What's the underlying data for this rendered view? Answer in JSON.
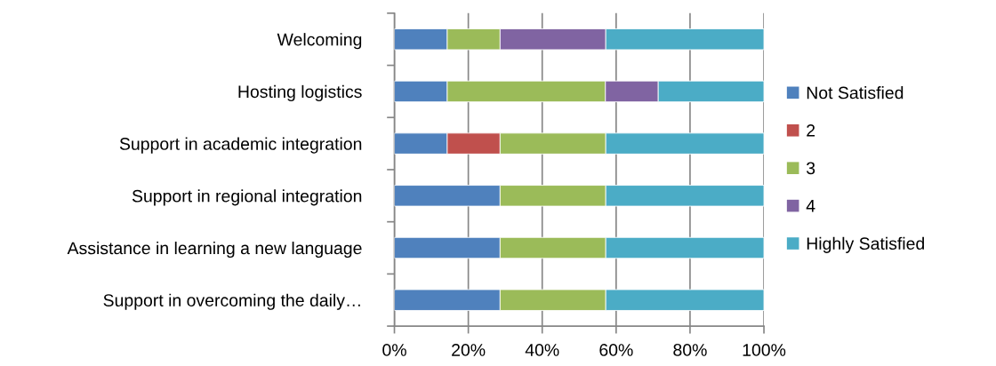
{
  "chart_data": {
    "type": "bar",
    "orientation": "horizontal",
    "stacked": true,
    "categories": [
      "Welcoming",
      "Hosting logistics",
      "Support in academic integration",
      "Support in regional integration",
      "Assistance in learning a new language",
      "Support in overcoming the daily…"
    ],
    "series": [
      {
        "name": "Not Satisfied",
        "color": "#4f81bd",
        "values": [
          14.3,
          14.3,
          14.3,
          28.6,
          28.6,
          28.6
        ]
      },
      {
        "name": "2",
        "color": "#c0504d",
        "values": [
          null,
          null,
          14.3,
          null,
          null,
          null
        ]
      },
      {
        "name": "3",
        "color": "#9bbb59",
        "values": [
          14.3,
          42.8,
          28.6,
          28.6,
          28.6,
          28.6
        ]
      },
      {
        "name": "4",
        "color": "#8064a2",
        "values": [
          28.6,
          14.3,
          null,
          null,
          null,
          null
        ]
      },
      {
        "name": "Highly Satisfied",
        "color": "#4bacc6",
        "values": [
          42.8,
          28.6,
          42.8,
          42.8,
          42.8,
          42.8
        ]
      }
    ],
    "xlim": [
      0,
      100
    ],
    "xticks": [
      {
        "value": 0,
        "label": "0%"
      },
      {
        "value": 20,
        "label": "20%"
      },
      {
        "value": 40,
        "label": "40%"
      },
      {
        "value": 60,
        "label": "60%"
      },
      {
        "value": 80,
        "label": "80%"
      },
      {
        "value": 100,
        "label": "100%"
      }
    ],
    "grid": "x",
    "legend": "right"
  }
}
